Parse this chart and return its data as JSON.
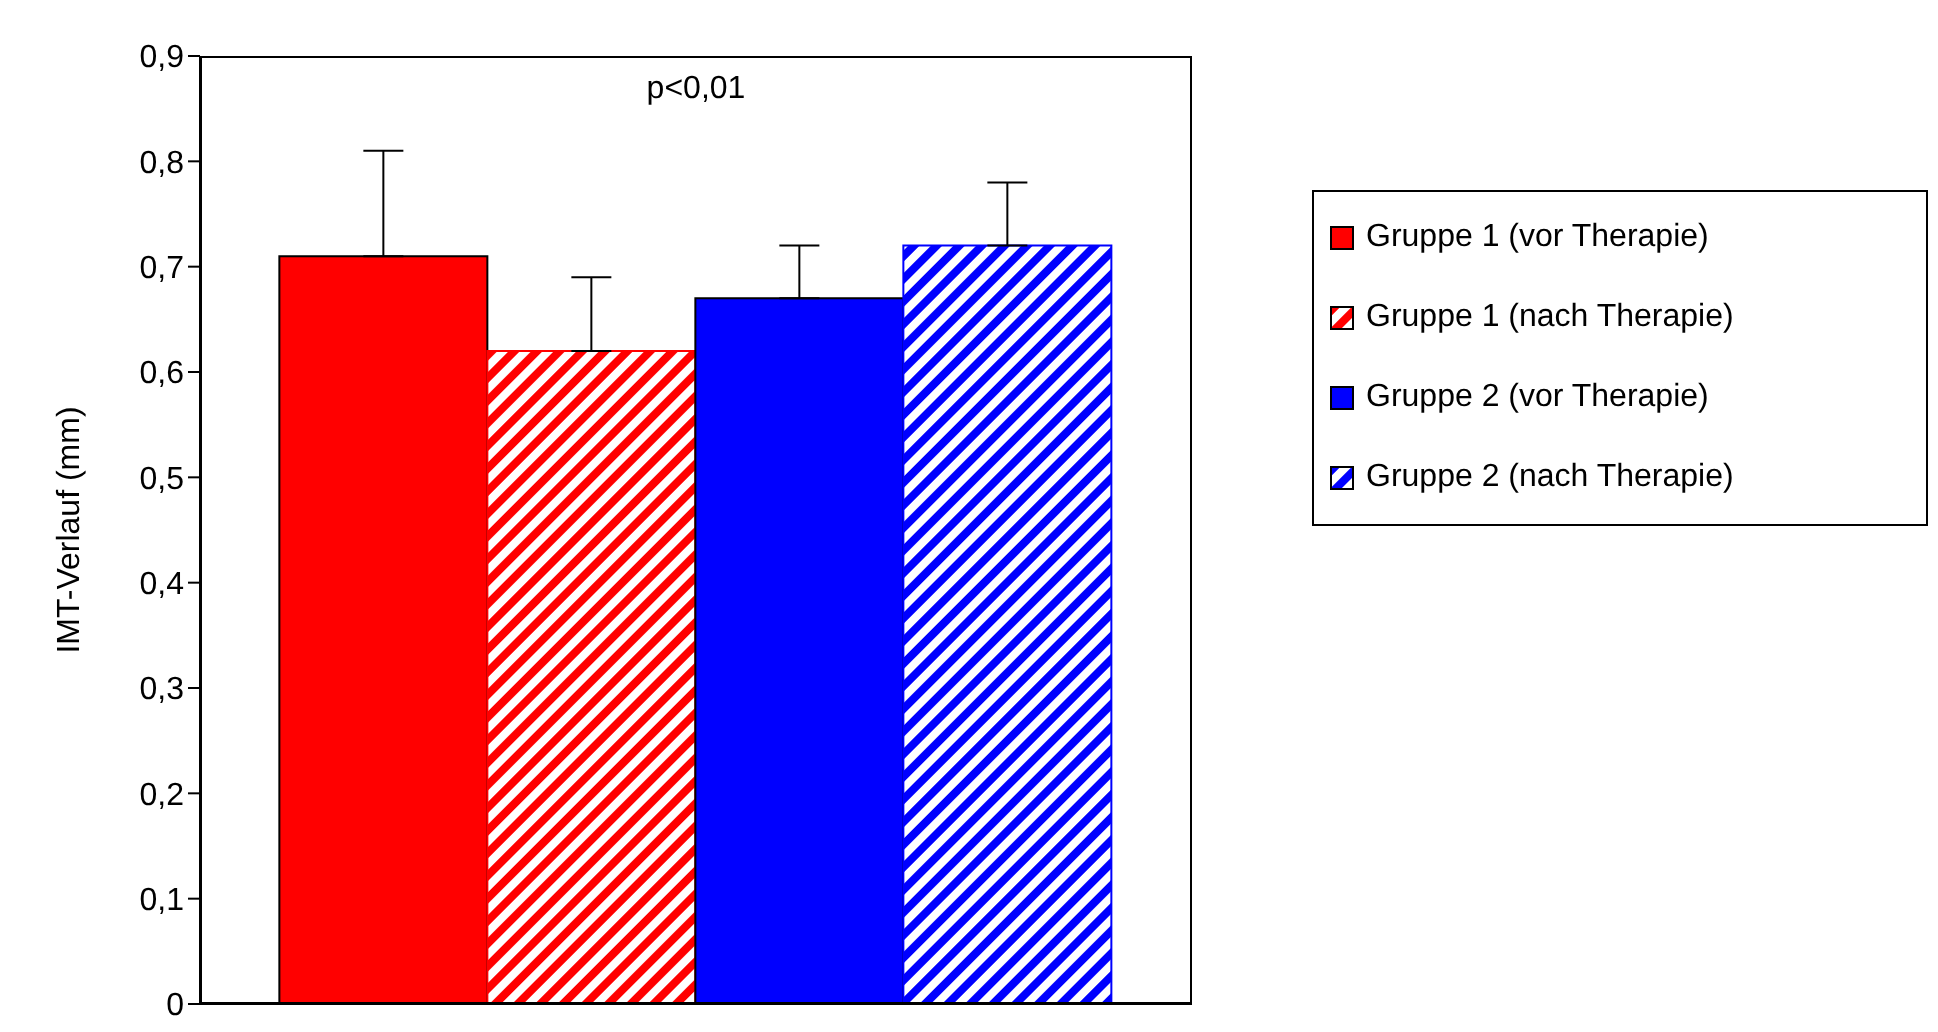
{
  "chart_data": {
    "type": "bar",
    "ylabel": "IMT-Verlauf (mm)",
    "categories": [
      null
    ],
    "series": [
      {
        "name": "Gruppe 1 (vor Therapie)",
        "color": "#ff0000",
        "values": [
          0.71
        ],
        "errors": [
          [
            0.71,
            0.81
          ]
        ]
      },
      {
        "name": "Gruppe 1 (nach Therapie)",
        "color": "#ff0000",
        "values": [
          0.62
        ],
        "errors": [
          [
            0.62,
            0.69
          ]
        ]
      },
      {
        "name": "Gruppe 2 (vor Therapie)",
        "color": "#0000ff",
        "values": [
          0.67
        ],
        "errors": [
          [
            0.67,
            0.72
          ]
        ]
      },
      {
        "name": "Gruppe 2 (nach Therapie)",
        "color": "#0000ff",
        "values": [
          0.72
        ],
        "errors": [
          [
            0.72,
            0.78
          ]
        ]
      }
    ],
    "ylim": [
      0,
      0.9
    ],
    "yticks": [
      0,
      {
        "value": 0.1,
        "label": "0,1"
      },
      {
        "value": 0.2,
        "label": "0,2"
      },
      {
        "value": 0.3,
        "label": "0,3"
      },
      {
        "value": 0.4,
        "label": "0,4"
      },
      {
        "value": 0.5,
        "label": "0,5"
      },
      {
        "value": 0.6,
        "label": "0,6"
      },
      {
        "value": 0.7,
        "label": "0,7"
      },
      {
        "value": 0.8,
        "label": "0,8"
      },
      {
        "value": 0.9,
        "label": "0,9"
      }
    ],
    "annotations": [
      "p<0,01"
    ],
    "legend": "right",
    "grid": false
  }
}
